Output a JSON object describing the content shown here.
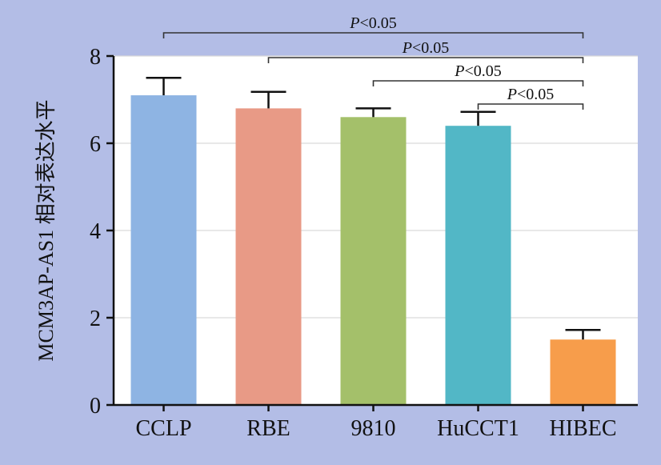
{
  "chart_data": {
    "type": "bar",
    "categories": [
      "CCLP",
      "RBE",
      "9810",
      "HuCCT1",
      "HIBEC"
    ],
    "values": [
      7.1,
      6.8,
      6.6,
      6.4,
      1.5
    ],
    "errors": [
      0.4,
      0.38,
      0.2,
      0.32,
      0.22
    ],
    "colors": [
      "#8eb4e3",
      "#e89a86",
      "#a4c06a",
      "#52b7c6",
      "#f79d4b"
    ],
    "ylabel": "MCM3AP-AS1 相对表达水平",
    "ylim": [
      0,
      8
    ],
    "yticks": [
      0,
      2,
      4,
      6,
      8
    ],
    "grid": true,
    "plot_background": "#ffffff",
    "significance": [
      {
        "from": "CCLP",
        "to": "HIBEC",
        "label": "P<0.05"
      },
      {
        "from": "RBE",
        "to": "HIBEC",
        "label": "P<0.05"
      },
      {
        "from": "9810",
        "to": "HIBEC",
        "label": "P<0.05"
      },
      {
        "from": "HuCCT1",
        "to": "HIBEC",
        "label": "P<0.05"
      }
    ]
  }
}
